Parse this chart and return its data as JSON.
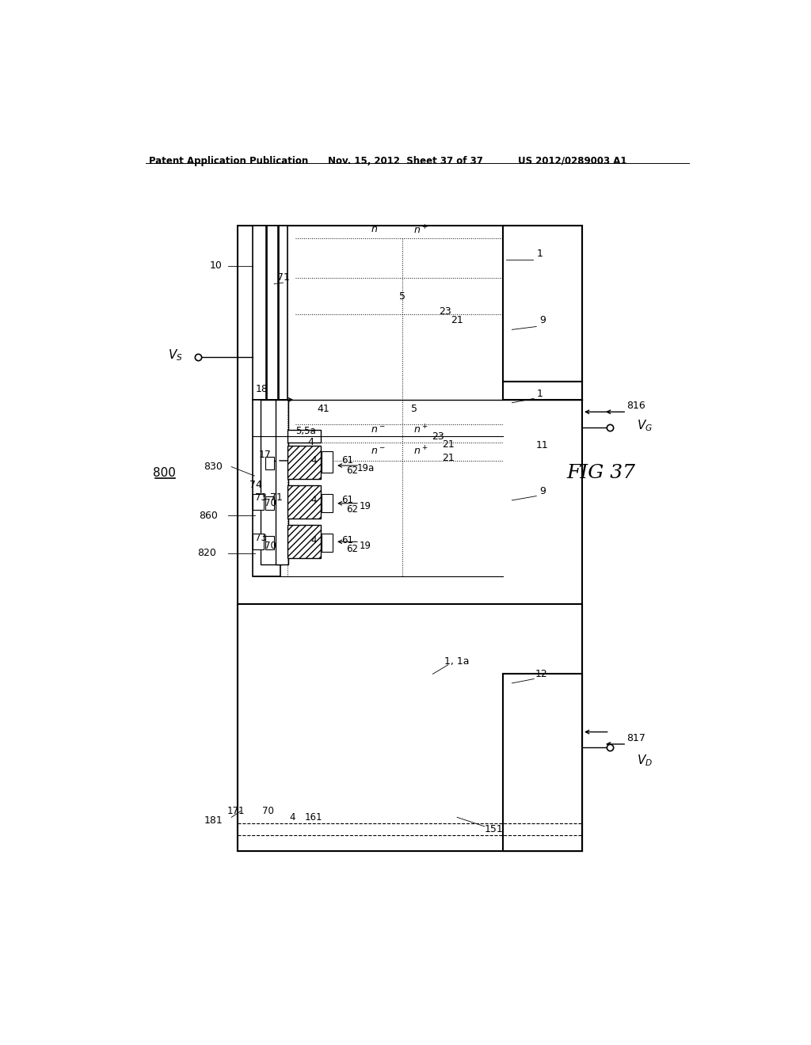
{
  "bg_color": "#ffffff",
  "lc": "#000000",
  "header_left": "Patent Application Publication",
  "header_mid": "Nov. 15, 2012  Sheet 37 of 37",
  "header_right": "US 2012/0289003 A1",
  "fig_label": "FIG 37",
  "device_label": "800"
}
